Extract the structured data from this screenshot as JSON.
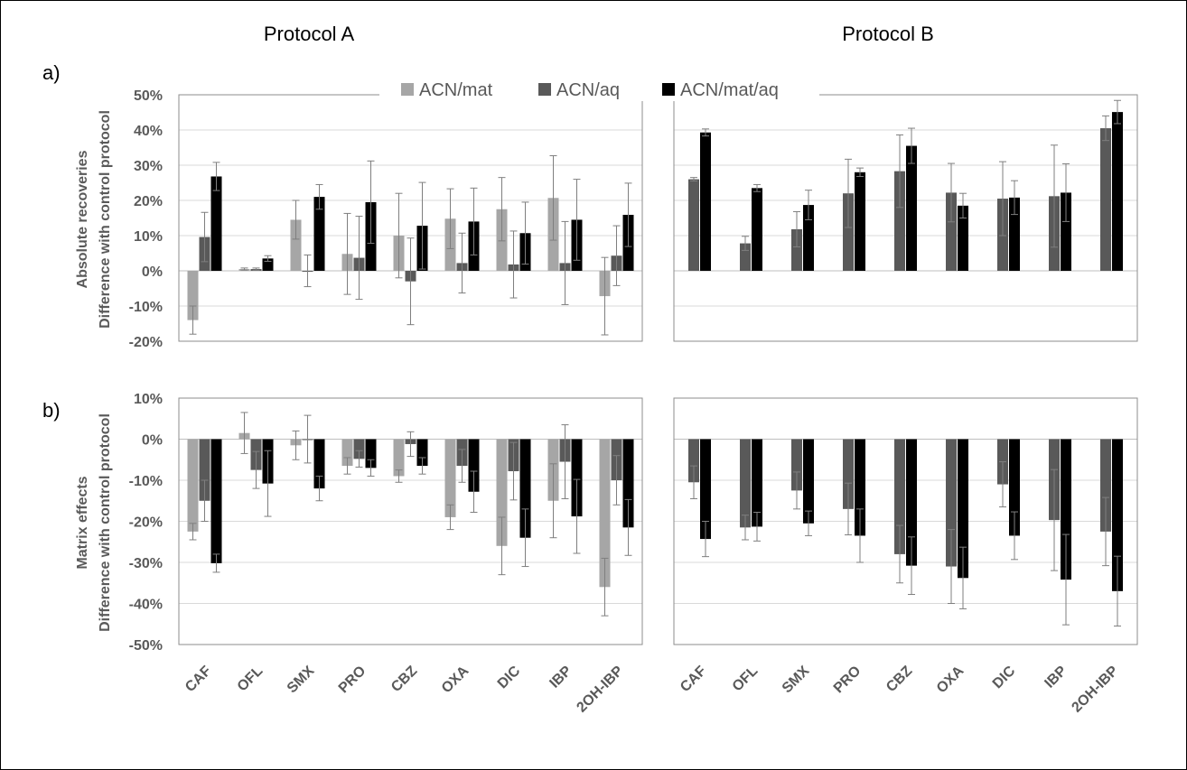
{
  "protocol_titles": [
    "Protocol A",
    "Protocol B"
  ],
  "panel_labels": [
    "a)",
    "b)"
  ],
  "colors": {
    "ACN/mat": "#a6a6a6",
    "ACN/aq": "#595959",
    "ACN/mat/aq": "#000000"
  },
  "chart_data": [
    {
      "type": "bar",
      "panel": "a)",
      "protocol": "Protocol A",
      "ylabel_lines": [
        "Absolute recoveries",
        "Difference with control protocol"
      ],
      "ylim": [
        -0.2,
        0.5
      ],
      "yticks": [
        {
          "v": 0.5,
          "label": "50%"
        },
        {
          "v": 0.4,
          "label": "40%"
        },
        {
          "v": 0.3,
          "label": "30%"
        },
        {
          "v": 0.2,
          "label": "20%"
        },
        {
          "v": 0.1,
          "label": "10%"
        },
        {
          "v": 0,
          "label": "0%"
        },
        {
          "v": -0.1,
          "label": "-10%"
        },
        {
          "v": -0.2,
          "label": "-20%"
        }
      ],
      "categories": [
        "CAF",
        "OFL",
        "SMX",
        "PRO",
        "CBZ",
        "OXA",
        "DIC",
        "IBP",
        "2OH-IBP"
      ],
      "series": [
        {
          "name": "ACN/mat",
          "values": [
            -0.14,
            0.005,
            0.145,
            0.048,
            0.1,
            0.148,
            0.175,
            0.207,
            -0.072
          ],
          "errors": [
            0.04,
            0.003,
            0.055,
            0.115,
            0.12,
            0.085,
            0.09,
            0.12,
            0.11
          ]
        },
        {
          "name": "ACN/aq",
          "values": [
            0.096,
            0.005,
            0.0,
            0.037,
            -0.03,
            0.022,
            0.018,
            0.022,
            0.043
          ],
          "errors": [
            0.07,
            0.003,
            0.045,
            0.118,
            0.123,
            0.085,
            0.095,
            0.118,
            0.085
          ]
        },
        {
          "name": "ACN/mat/aq",
          "values": [
            0.268,
            0.035,
            0.21,
            0.195,
            0.128,
            0.14,
            0.107,
            0.145,
            0.159
          ],
          "errors": [
            0.04,
            0.008,
            0.035,
            0.117,
            0.123,
            0.095,
            0.088,
            0.115,
            0.09
          ]
        }
      ],
      "legend": "top"
    },
    {
      "type": "bar",
      "panel": "a)",
      "protocol": "Protocol B",
      "ylim": [
        -0.2,
        0.5
      ],
      "categories": [
        "CAF",
        "OFL",
        "SMX",
        "PRO",
        "CBZ",
        "OXA",
        "DIC",
        "IBP",
        "2OH-IBP"
      ],
      "series": [
        {
          "name": "ACN/aq",
          "values": [
            0.26,
            0.078,
            0.118,
            0.22,
            0.283,
            0.222,
            0.205,
            0.212,
            0.405
          ],
          "errors": [
            0.005,
            0.02,
            0.05,
            0.097,
            0.103,
            0.083,
            0.105,
            0.145,
            0.035
          ]
        },
        {
          "name": "ACN/mat/aq",
          "values": [
            0.393,
            0.235,
            0.187,
            0.28,
            0.355,
            0.185,
            0.208,
            0.222,
            0.451
          ],
          "errors": [
            0.01,
            0.01,
            0.042,
            0.012,
            0.05,
            0.035,
            0.048,
            0.082,
            0.033
          ]
        }
      ]
    },
    {
      "type": "bar",
      "panel": "b)",
      "protocol": "Protocol A",
      "ylabel_lines": [
        "Matrix effects",
        "Difference with control protocol"
      ],
      "ylim": [
        -0.5,
        0.1
      ],
      "yticks": [
        {
          "v": 0.1,
          "label": "10%"
        },
        {
          "v": 0,
          "label": "0%"
        },
        {
          "v": -0.1,
          "label": "-10%"
        },
        {
          "v": -0.2,
          "label": "-20%"
        },
        {
          "v": -0.3,
          "label": "-30%"
        },
        {
          "v": -0.4,
          "label": "-40%"
        },
        {
          "v": -0.5,
          "label": "-50%"
        }
      ],
      "categories": [
        "CAF",
        "OFL",
        "SMX",
        "PRO",
        "CBZ",
        "OXA",
        "DIC",
        "IBP",
        "2OH-IBP"
      ],
      "series": [
        {
          "name": "ACN/mat",
          "values": [
            -0.225,
            0.015,
            -0.015,
            -0.065,
            -0.09,
            -0.19,
            -0.26,
            -0.15,
            -0.36
          ],
          "errors": [
            0.02,
            0.05,
            0.035,
            0.02,
            0.015,
            0.03,
            0.07,
            0.09,
            0.07
          ]
        },
        {
          "name": "ACN/aq",
          "values": [
            -0.15,
            -0.075,
            0.0,
            -0.048,
            -0.012,
            -0.065,
            -0.078,
            -0.055,
            -0.1
          ],
          "errors": [
            0.05,
            0.045,
            0.058,
            0.02,
            0.03,
            0.04,
            0.07,
            0.09,
            0.06
          ]
        },
        {
          "name": "ACN/mat/aq",
          "values": [
            -0.302,
            -0.108,
            -0.12,
            -0.07,
            -0.065,
            -0.128,
            -0.24,
            -0.188,
            -0.215
          ],
          "errors": [
            0.022,
            0.08,
            0.03,
            0.02,
            0.02,
            0.05,
            0.07,
            0.09,
            0.068
          ]
        }
      ]
    },
    {
      "type": "bar",
      "panel": "b)",
      "protocol": "Protocol B",
      "ylim": [
        -0.5,
        0.1
      ],
      "categories": [
        "CAF",
        "OFL",
        "SMX",
        "PRO",
        "CBZ",
        "OXA",
        "DIC",
        "IBP",
        "2OH-IBP"
      ],
      "series": [
        {
          "name": "ACN/aq",
          "values": [
            -0.105,
            -0.215,
            -0.125,
            -0.17,
            -0.28,
            -0.31,
            -0.11,
            -0.197,
            -0.225
          ],
          "errors": [
            0.04,
            0.03,
            0.045,
            0.063,
            0.07,
            0.09,
            0.055,
            0.123,
            0.083
          ]
        },
        {
          "name": "ACN/mat/aq",
          "values": [
            -0.243,
            -0.213,
            -0.205,
            -0.235,
            -0.308,
            -0.338,
            -0.235,
            -0.342,
            -0.37
          ],
          "errors": [
            0.043,
            0.035,
            0.03,
            0.065,
            0.07,
            0.075,
            0.058,
            0.11,
            0.085
          ]
        }
      ]
    }
  ]
}
